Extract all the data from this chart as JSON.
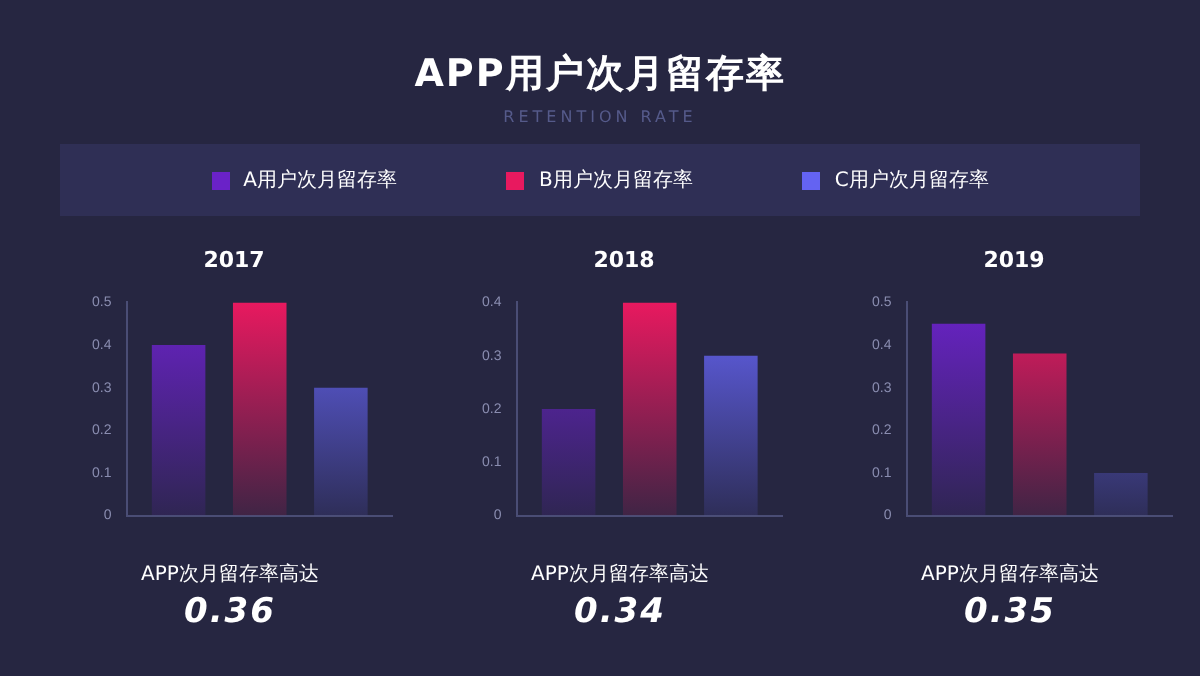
{
  "chart_data": [
    {
      "type": "other",
      "title": "APP用户次月留存率",
      "subtitle": "RETENTION RATE"
    },
    {
      "type": "bar",
      "title": "2017",
      "categories": [
        null
      ],
      "ylim": [
        0,
        0.5
      ],
      "yticks": [
        0,
        0.1,
        0.2,
        0.3,
        0.4,
        0.5
      ],
      "grid": false,
      "legend": "top",
      "tick_labels": "y",
      "series": [
        {
          "name": "A用户次月留存率",
          "color": "#6a22c8",
          "values": [
            0.4
          ]
        },
        {
          "name": "B用户次月留存率",
          "color": "#e8195f",
          "values": [
            0.5
          ]
        },
        {
          "name": "C用户次月留存率",
          "color": "#6463f2",
          "values": [
            0.3
          ]
        }
      ],
      "annotations": [
        "APP次月留存率高达",
        "0.36"
      ]
    },
    {
      "type": "bar",
      "title": "2018",
      "categories": [
        null
      ],
      "ylim": [
        0,
        0.4
      ],
      "yticks": [
        0,
        0.1,
        0.2,
        0.3,
        0.4
      ],
      "grid": false,
      "tick_labels": "y",
      "series": [
        {
          "color": "#6a22c8",
          "values": [
            0.2
          ]
        },
        {
          "color": "#e8195f",
          "values": [
            0.4
          ]
        },
        {
          "color": "#6463f2",
          "values": [
            0.3
          ]
        }
      ],
      "annotations": [
        "APP次月留存率高达",
        "0.34"
      ]
    },
    {
      "type": "bar",
      "title": "2019",
      "categories": [
        null
      ],
      "ylim": [
        0,
        0.5
      ],
      "yticks": [
        0,
        0.1,
        0.2,
        0.3,
        0.4,
        0.5
      ],
      "grid": false,
      "tick_labels": "y",
      "series": [
        {
          "color": "#6a22c8",
          "values": [
            0.45
          ]
        },
        {
          "color": "#e8195f",
          "values": [
            0.38
          ]
        },
        {
          "color": "#6463f2",
          "values": [
            0.1
          ]
        }
      ],
      "annotations": [
        "APP次月留存率高达",
        "0.35"
      ]
    }
  ]
}
